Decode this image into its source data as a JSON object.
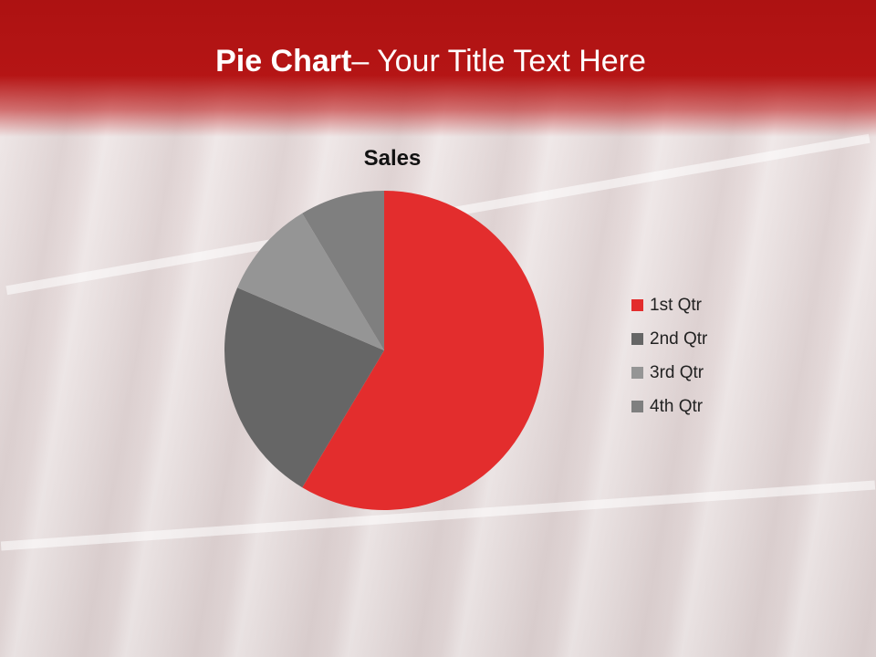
{
  "slide": {
    "title_bold": "Pie Chart",
    "title_rest": "– Your Title Text Here"
  },
  "chart_data": {
    "type": "pie",
    "title": "Sales",
    "categories": [
      "1st Qtr",
      "2nd Qtr",
      "3rd Qtr",
      "4th Qtr"
    ],
    "values": [
      8.2,
      3.2,
      1.4,
      1.2
    ],
    "colors": [
      "#e32d2d",
      "#666666",
      "#959595",
      "#7f7f7f"
    ],
    "legend_position": "right"
  }
}
